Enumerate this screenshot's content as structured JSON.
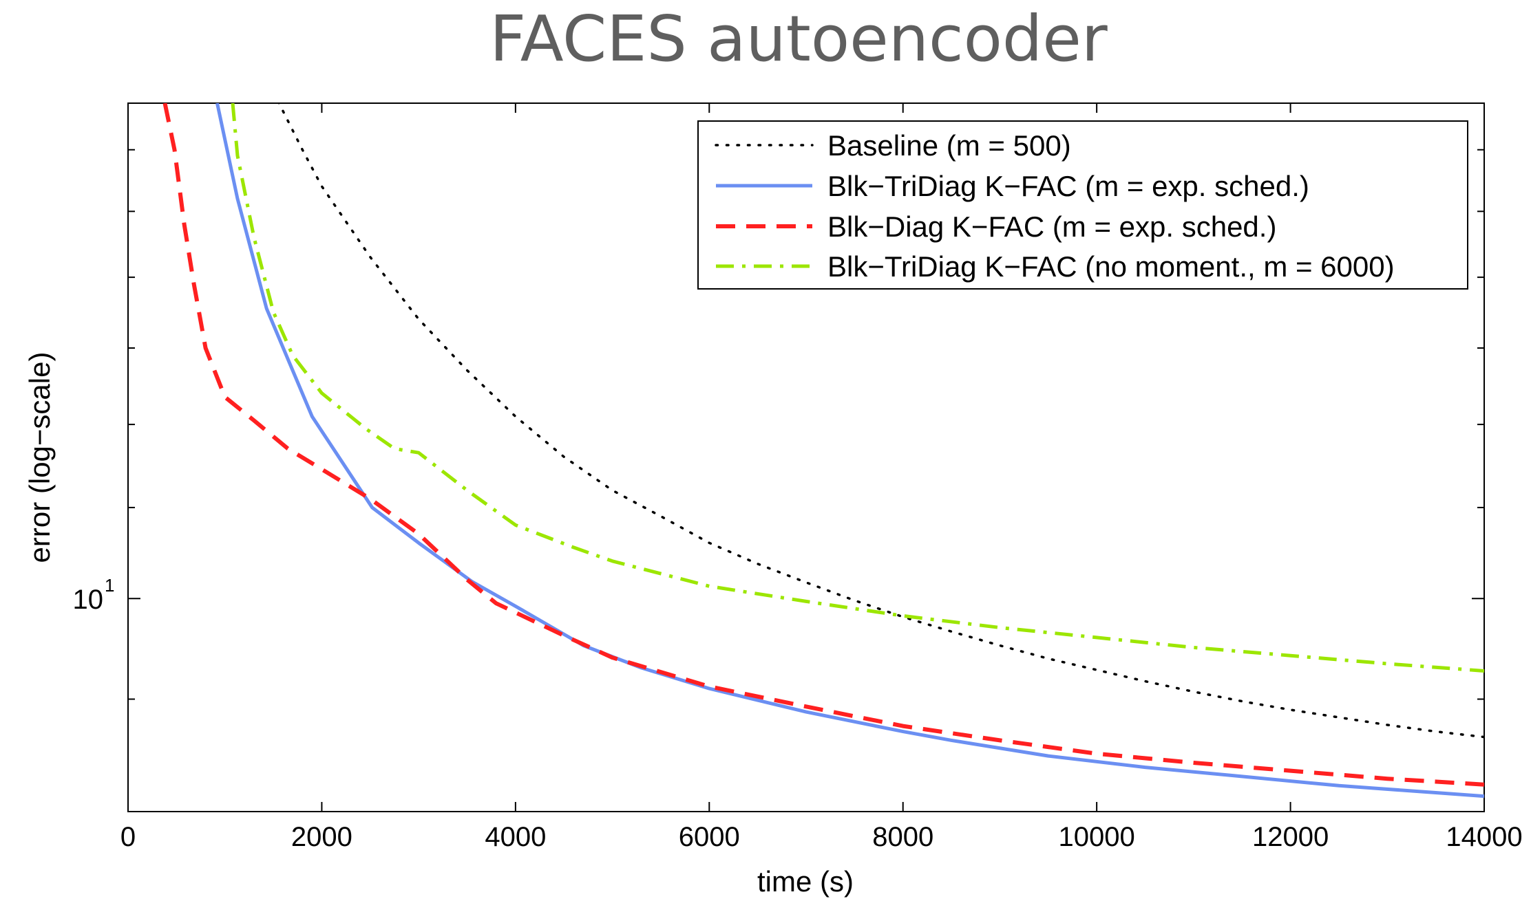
{
  "chart_data": {
    "type": "line",
    "title": "FACES autoencoder",
    "xlabel": "time (s)",
    "ylabel": "error (log−scale)",
    "xlim": [
      0,
      14000
    ],
    "ylim": [
      8.0,
      16.8
    ],
    "yscale": "log",
    "x_ticks": [
      0,
      2000,
      4000,
      6000,
      8000,
      10000,
      12000,
      14000
    ],
    "x_tick_labels": [
      "0",
      "2000",
      "4000",
      "6000",
      "8000",
      "10000",
      "12000",
      "14000"
    ],
    "y_ticks_major": [
      10
    ],
    "y_tick_labels": [
      {
        "base": "10",
        "exponent": "1"
      }
    ],
    "y_ticks_minor": [
      8,
      9,
      11,
      12,
      13,
      14,
      15,
      16
    ],
    "legend_position": "top-right",
    "series": [
      {
        "name": "Baseline (m = 500)",
        "color": "#000000",
        "style": "dotted",
        "points": [
          [
            1500,
            17.0
          ],
          [
            1800,
            16.0
          ],
          [
            2000,
            15.4
          ],
          [
            2500,
            14.3
          ],
          [
            3000,
            13.4
          ],
          [
            3500,
            12.7
          ],
          [
            4000,
            12.1
          ],
          [
            4500,
            11.6
          ],
          [
            5000,
            11.2
          ],
          [
            5500,
            10.9
          ],
          [
            6000,
            10.6
          ],
          [
            6500,
            10.37
          ],
          [
            7000,
            10.17
          ],
          [
            7500,
            9.98
          ],
          [
            8000,
            9.81
          ],
          [
            8500,
            9.66
          ],
          [
            9000,
            9.52
          ],
          [
            9500,
            9.39
          ],
          [
            10000,
            9.28
          ],
          [
            10500,
            9.17
          ],
          [
            11000,
            9.07
          ],
          [
            11500,
            8.98
          ],
          [
            12000,
            8.9
          ],
          [
            12500,
            8.83
          ],
          [
            13000,
            8.76
          ],
          [
            13500,
            8.7
          ],
          [
            14000,
            8.65
          ]
        ]
      },
      {
        "name": "Blk−TriDiag K−FAC (m = exp. sched.)",
        "color": "#6b8ff2",
        "style": "solid",
        "points": [
          [
            920,
            16.8
          ],
          [
            1130,
            15.2
          ],
          [
            1430,
            13.55
          ],
          [
            1900,
            12.1
          ],
          [
            2520,
            11.0
          ],
          [
            3000,
            10.6
          ],
          [
            3550,
            10.18
          ],
          [
            4000,
            9.92
          ],
          [
            4700,
            9.52
          ],
          [
            5300,
            9.3
          ],
          [
            6000,
            9.1
          ],
          [
            7000,
            8.88
          ],
          [
            8000,
            8.7
          ],
          [
            8500,
            8.62
          ],
          [
            9500,
            8.48
          ],
          [
            10500,
            8.38
          ],
          [
            11500,
            8.3
          ],
          [
            12500,
            8.22
          ],
          [
            13500,
            8.16
          ],
          [
            14000,
            8.13
          ]
        ]
      },
      {
        "name": "Blk−Diag K−FAC (m = exp. sched.)",
        "color": "#ff2020",
        "style": "dashed",
        "points": [
          [
            380,
            16.8
          ],
          [
            480,
            16.0
          ],
          [
            580,
            14.8
          ],
          [
            680,
            13.9
          ],
          [
            800,
            13.0
          ],
          [
            1000,
            12.35
          ],
          [
            1300,
            12.05
          ],
          [
            1650,
            11.7
          ],
          [
            2000,
            11.45
          ],
          [
            2500,
            11.1
          ],
          [
            3000,
            10.7
          ],
          [
            3500,
            10.2
          ],
          [
            3800,
            9.95
          ],
          [
            4500,
            9.62
          ],
          [
            5000,
            9.4
          ],
          [
            6000,
            9.12
          ],
          [
            7000,
            8.93
          ],
          [
            8000,
            8.75
          ],
          [
            9000,
            8.62
          ],
          [
            10000,
            8.5
          ],
          [
            11000,
            8.42
          ],
          [
            12000,
            8.35
          ],
          [
            13000,
            8.28
          ],
          [
            14000,
            8.23
          ]
        ]
      },
      {
        "name": "Blk−TriDiag K−FAC (no moment., m = 6000)",
        "color": "#9ce600",
        "style": "dashdot",
        "points": [
          [
            1080,
            16.8
          ],
          [
            1130,
            15.9
          ],
          [
            1300,
            14.6
          ],
          [
            1500,
            13.5
          ],
          [
            1700,
            12.9
          ],
          [
            2000,
            12.4
          ],
          [
            2450,
            11.95
          ],
          [
            2750,
            11.7
          ],
          [
            3000,
            11.65
          ],
          [
            3500,
            11.2
          ],
          [
            4000,
            10.8
          ],
          [
            4600,
            10.55
          ],
          [
            5000,
            10.4
          ],
          [
            6000,
            10.13
          ],
          [
            7000,
            9.97
          ],
          [
            8000,
            9.82
          ],
          [
            9000,
            9.7
          ],
          [
            10000,
            9.6
          ],
          [
            11000,
            9.5
          ],
          [
            12000,
            9.42
          ],
          [
            13000,
            9.34
          ],
          [
            14000,
            9.27
          ]
        ]
      }
    ]
  }
}
